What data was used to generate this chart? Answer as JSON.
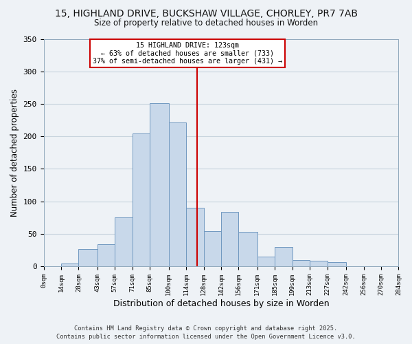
{
  "title_line1": "15, HIGHLAND DRIVE, BUCKSHAW VILLAGE, CHORLEY, PR7 7AB",
  "title_line2": "Size of property relative to detached houses in Worden",
  "xlabel": "Distribution of detached houses by size in Worden",
  "ylabel": "Number of detached properties",
  "bar_left_edges": [
    0,
    14,
    28,
    43,
    57,
    71,
    85,
    100,
    114,
    128,
    142,
    156,
    171,
    185,
    199,
    213,
    227,
    242,
    256,
    270
  ],
  "bar_widths": [
    14,
    14,
    15,
    14,
    14,
    14,
    15,
    14,
    14,
    14,
    14,
    15,
    14,
    14,
    14,
    14,
    15,
    14,
    14,
    14
  ],
  "bar_heights": [
    0,
    4,
    26,
    34,
    75,
    204,
    251,
    221,
    90,
    54,
    84,
    53,
    15,
    30,
    10,
    8,
    6,
    0,
    0,
    0
  ],
  "bar_color": "#c8d8ea",
  "bar_edge_color": "#7098c0",
  "tick_labels": [
    "0sqm",
    "14sqm",
    "28sqm",
    "43sqm",
    "57sqm",
    "71sqm",
    "85sqm",
    "100sqm",
    "114sqm",
    "128sqm",
    "142sqm",
    "156sqm",
    "171sqm",
    "185sqm",
    "199sqm",
    "213sqm",
    "227sqm",
    "242sqm",
    "256sqm",
    "270sqm",
    "284sqm"
  ],
  "vline_x": 123,
  "vline_color": "#cc0000",
  "annotation_title": "15 HIGHLAND DRIVE: 123sqm",
  "annotation_line2": "← 63% of detached houses are smaller (733)",
  "annotation_line3": "37% of semi-detached houses are larger (431) →",
  "annotation_box_color": "#cc0000",
  "ylim": [
    0,
    350
  ],
  "yticks": [
    0,
    50,
    100,
    150,
    200,
    250,
    300,
    350
  ],
  "grid_color": "#c8d4de",
  "footer_line1": "Contains HM Land Registry data © Crown copyright and database right 2025.",
  "footer_line2": "Contains public sector information licensed under the Open Government Licence v3.0.",
  "bg_color": "#eef2f6"
}
